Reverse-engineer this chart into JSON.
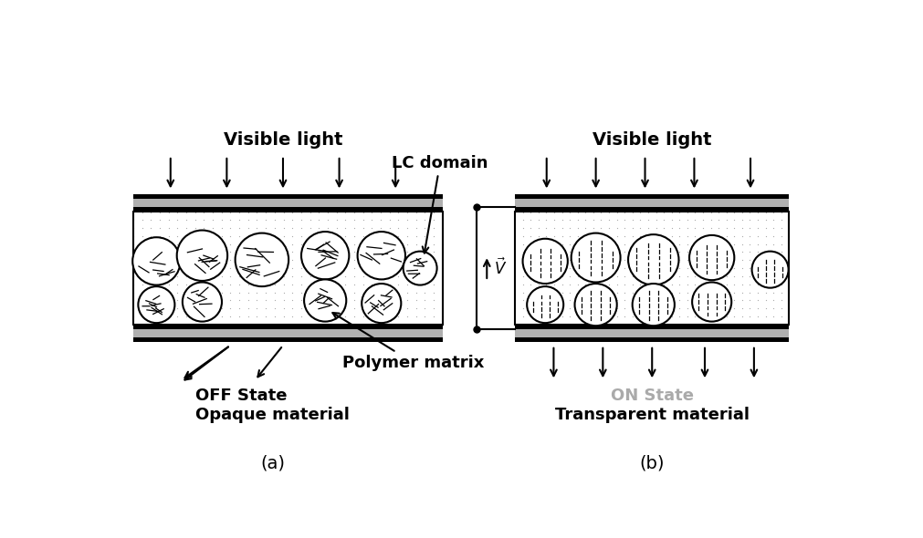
{
  "fig_width": 10.12,
  "fig_height": 5.9,
  "bg_color": "#ffffff",
  "title_a": "Visible light",
  "title_b": "Visible light",
  "label_lc": "LC domain",
  "label_polymer": "Polymer matrix",
  "label_off": "OFF State",
  "label_on": "ON State",
  "label_opaque": "Opaque material",
  "label_transparent": "Transparent material",
  "label_a": "(a)",
  "label_b": "(b)",
  "on_state_color": "#aaaaaa",
  "black": "#000000",
  "gray_electrode": "#b0b0b0"
}
